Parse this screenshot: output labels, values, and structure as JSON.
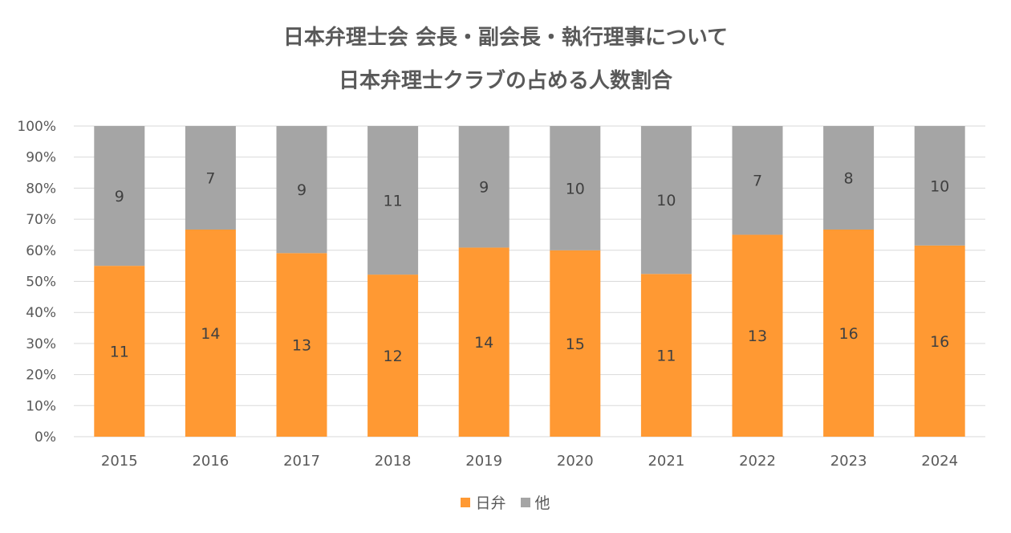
{
  "chart_data": {
    "type": "bar",
    "stacked": "percent",
    "title": "日本弁理士会 会長・副会長・執行理事について",
    "subtitle": "日本弁理士クラブの占める人数割合",
    "categories": [
      "2015",
      "2016",
      "2017",
      "2018",
      "2019",
      "2020",
      "2021",
      "2022",
      "2023",
      "2024"
    ],
    "series": [
      {
        "name": "日弁",
        "color": "#FF9933",
        "values": [
          11,
          14,
          13,
          12,
          14,
          15,
          11,
          13,
          16,
          16
        ]
      },
      {
        "name": "他",
        "color": "#A5A5A5",
        "values": [
          9,
          7,
          9,
          11,
          9,
          10,
          10,
          7,
          8,
          10
        ]
      }
    ],
    "yticks": [
      "0%",
      "10%",
      "20%",
      "30%",
      "40%",
      "50%",
      "60%",
      "70%",
      "80%",
      "90%",
      "100%"
    ],
    "ylim": [
      0,
      100
    ],
    "grid": true,
    "legend": "bottom"
  }
}
